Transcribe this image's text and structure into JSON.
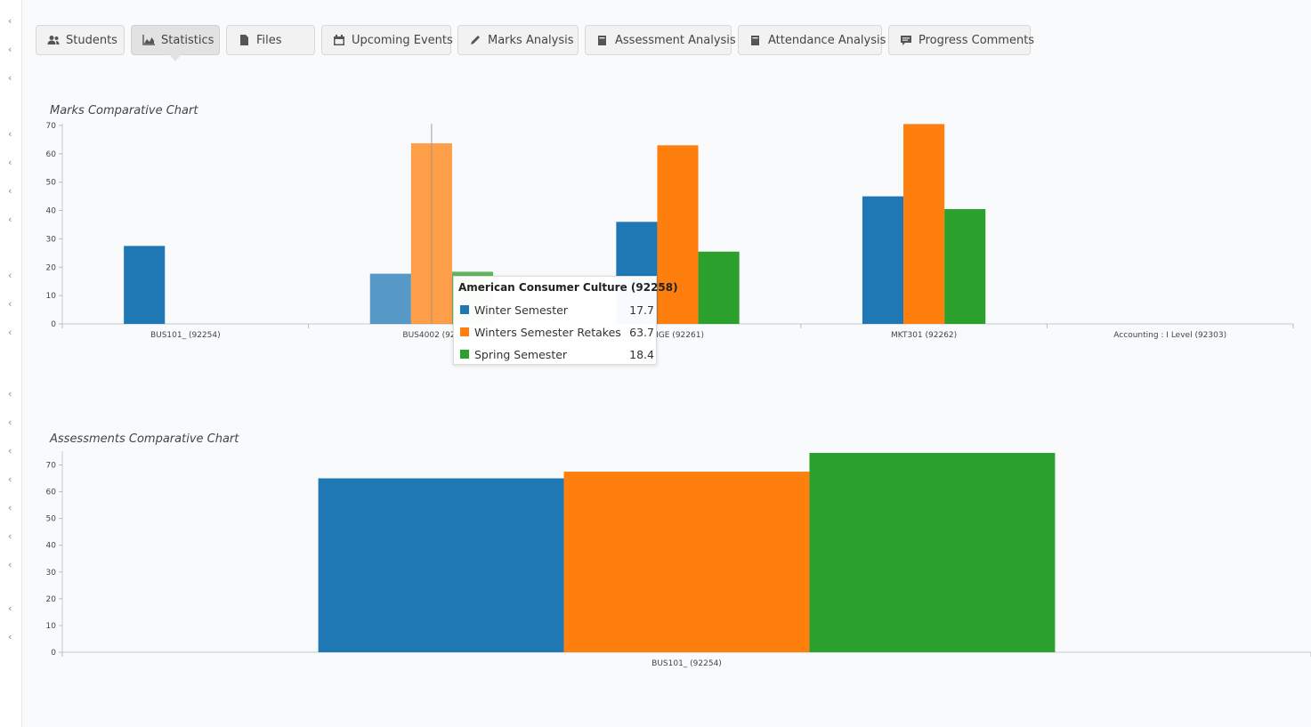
{
  "tabs": [
    {
      "label": "Students",
      "icon": "users-icon",
      "active": false
    },
    {
      "label": "Statistics",
      "icon": "area-chart-icon",
      "active": true
    },
    {
      "label": "Files",
      "icon": "file-icon",
      "active": false
    },
    {
      "label": "Upcoming Events",
      "icon": "calendar-icon",
      "active": false
    },
    {
      "label": "Marks Analysis",
      "icon": "pencil-icon",
      "active": false
    },
    {
      "label": "Assessment Analysis",
      "icon": "book-icon",
      "active": false
    },
    {
      "label": "Attendance Analysis",
      "icon": "book-icon",
      "active": false
    },
    {
      "label": "Progress Comments",
      "icon": "comment-icon",
      "active": false
    }
  ],
  "colors": {
    "winter": "#1f77b4",
    "retakes": "#ff7f0e",
    "spring": "#2ca02c"
  },
  "chart_data": [
    {
      "type": "bar",
      "title": "Marks Comparative Chart",
      "categories": [
        "BUS101_ (92254)",
        "BUS4002 (92258)",
        "MGE (92261)",
        "MKT301 (92262)",
        "Accounting : I Level (92303)"
      ],
      "category_labels_shown": [
        "BUS101_ (92254)",
        "BUS4002 (922",
        "MGE (92261)",
        "MKT301 (92262)",
        "Accounting : I Level (92303)"
      ],
      "series": [
        {
          "name": "Winter Semester",
          "values": [
            27.5,
            17.7,
            36,
            45,
            0
          ]
        },
        {
          "name": "Winters Semester Retakes",
          "values": [
            0,
            63.7,
            63,
            70.5,
            0
          ]
        },
        {
          "name": "Spring Semester",
          "values": [
            0,
            18.4,
            25.5,
            40.5,
            0
          ]
        }
      ],
      "ylim": [
        0,
        70
      ],
      "yticks": [
        0,
        10,
        20,
        30,
        40,
        50,
        60,
        70
      ],
      "highlighted_category": 1,
      "tooltip": {
        "title": "American Consumer Culture (92258)",
        "rows": [
          {
            "name": "Winter Semester",
            "value": "17.7"
          },
          {
            "name": "Winters Semester Retakes",
            "value": "63.7"
          },
          {
            "name": "Spring Semester",
            "value": "18.4"
          }
        ]
      }
    },
    {
      "type": "bar",
      "title": "Assessments Comparative Chart",
      "categories": [
        "BUS101_ (92254)"
      ],
      "series": [
        {
          "name": "Winter Semester",
          "values": [
            65
          ]
        },
        {
          "name": "Winters Semester Retakes",
          "values": [
            67.5
          ]
        },
        {
          "name": "Spring Semester",
          "values": [
            74.5
          ]
        }
      ],
      "ylim": [
        0,
        74.5
      ],
      "yticks": [
        0,
        10,
        20,
        30,
        40,
        50,
        60,
        70
      ]
    }
  ]
}
